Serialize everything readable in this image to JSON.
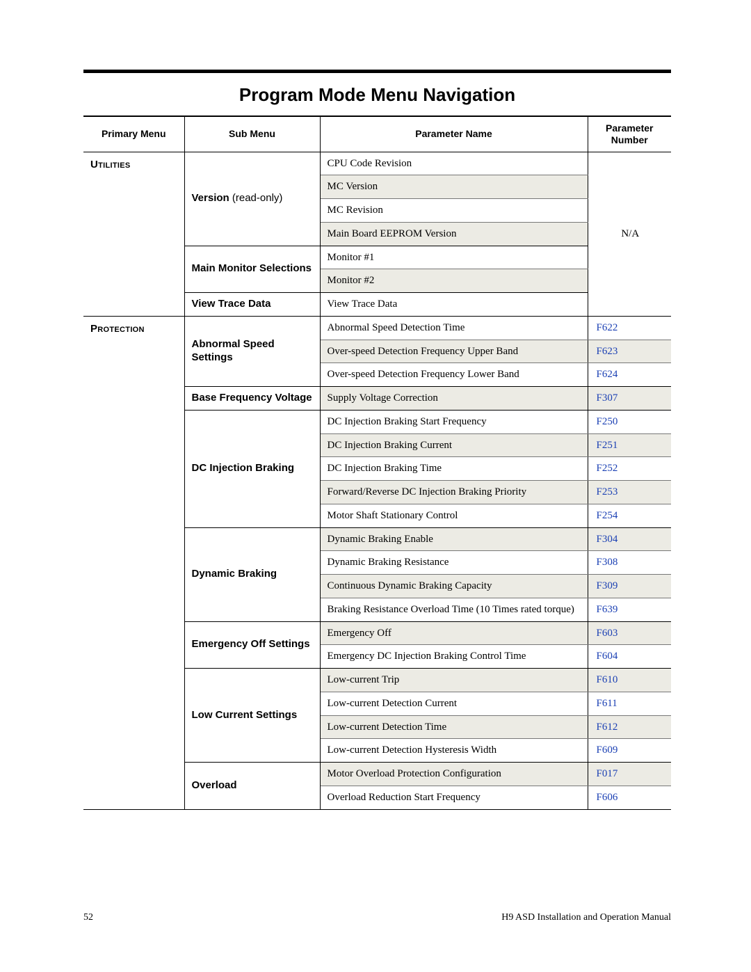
{
  "title": "Program Mode Menu Navigation",
  "columns": {
    "c1": "Primary Menu",
    "c2": "Sub Menu",
    "c3": "Parameter Name",
    "c4": "Parameter Number"
  },
  "footer": {
    "page": "52",
    "manual": "H9 ASD Installation and Operation Manual"
  },
  "section1": {
    "primary": "Utilities",
    "sub1_label": "Version",
    "sub1_note": " (read-only)",
    "sub1_params": [
      "CPU Code Revision",
      "MC Version",
      "MC Revision",
      "Main Board EEPROM Version"
    ],
    "sub2_label": "Main Monitor Selections",
    "sub2_params": [
      "Monitor #1",
      "Monitor #2"
    ],
    "sub3_label": "View Trace Data",
    "sub3_params": [
      "View Trace Data"
    ],
    "pnum": "N/A"
  },
  "section2": {
    "primary": "Protection",
    "groups": [
      {
        "label": "Abnormal Speed Settings",
        "rows": [
          {
            "p": "Abnormal Speed Detection Time",
            "n": "F622"
          },
          {
            "p": "Over-speed Detection Frequency Upper Band",
            "n": "F623"
          },
          {
            "p": "Over-speed Detection Frequency Lower Band",
            "n": "F624"
          }
        ]
      },
      {
        "label": "Base Frequency Voltage",
        "rows": [
          {
            "p": "Supply Voltage Correction",
            "n": "F307"
          }
        ]
      },
      {
        "label": "DC Injection Braking",
        "rows": [
          {
            "p": "DC Injection Braking Start Frequency",
            "n": "F250"
          },
          {
            "p": "DC Injection Braking Current",
            "n": "F251"
          },
          {
            "p": "DC Injection Braking Time",
            "n": "F252"
          },
          {
            "p": "Forward/Reverse DC Injection Braking Priority",
            "n": "F253"
          },
          {
            "p": "Motor Shaft Stationary Control",
            "n": "F254"
          }
        ]
      },
      {
        "label": "Dynamic Braking",
        "rows": [
          {
            "p": "Dynamic Braking Enable",
            "n": "F304"
          },
          {
            "p": "Dynamic Braking Resistance",
            "n": "F308"
          },
          {
            "p": "Continuous Dynamic Braking Capacity",
            "n": "F309"
          },
          {
            "p": "Braking Resistance Overload Time (10 Times rated torque)",
            "n": "F639"
          }
        ]
      },
      {
        "label": "Emergency Off Settings",
        "rows": [
          {
            "p": "Emergency Off",
            "n": "F603"
          },
          {
            "p": "Emergency DC Injection Braking Control Time",
            "n": "F604"
          }
        ]
      },
      {
        "label": "Low Current Settings",
        "rows": [
          {
            "p": "Low-current Trip",
            "n": "F610"
          },
          {
            "p": "Low-current Detection Current",
            "n": "F611"
          },
          {
            "p": "Low-current Detection Time",
            "n": "F612"
          },
          {
            "p": "Low-current Detection Hysteresis Width",
            "n": "F609"
          }
        ]
      },
      {
        "label": "Overload",
        "rows": [
          {
            "p": "Motor Overload Protection Configuration",
            "n": "F017"
          },
          {
            "p": "Overload Reduction Start Frequency",
            "n": "F606"
          }
        ]
      }
    ]
  }
}
